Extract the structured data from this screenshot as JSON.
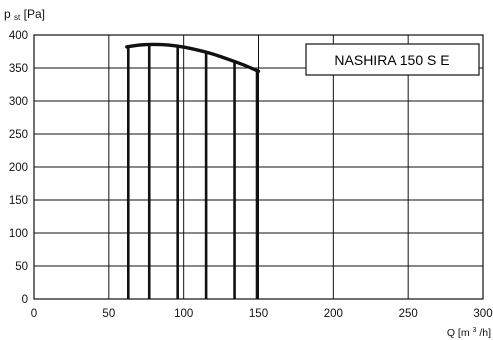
{
  "chart_data": {
    "type": "line",
    "title": "",
    "legend_box_text": "NASHIRA 150 S E",
    "legend_placement": "top-right",
    "ylabel": {
      "main": "p",
      "sub": "st",
      "unit": " [Pa]"
    },
    "xlabel": {
      "prefix": "Q [m",
      "superscript": "3",
      "suffix": "/h]"
    },
    "xlim": [
      0,
      300
    ],
    "ylim": [
      0,
      400
    ],
    "x_ticks": [
      "0",
      "50",
      "100",
      "150",
      "200",
      "250",
      "300"
    ],
    "y_ticks": [
      "0",
      "50",
      "100",
      "150",
      "200",
      "250",
      "300",
      "350",
      "400"
    ],
    "grid": true,
    "series": [
      {
        "values": [
          [
            62,
            382
          ],
          [
            70,
            385
          ],
          [
            80,
            386
          ],
          [
            90,
            385
          ],
          [
            100,
            382
          ],
          [
            110,
            377
          ],
          [
            120,
            371
          ],
          [
            130,
            363
          ],
          [
            140,
            355
          ],
          [
            150,
            345
          ]
        ]
      }
    ],
    "vertical_lines_x": [
      63,
      77,
      96,
      115,
      134,
      149
    ],
    "colors": {
      "curve": "#111111",
      "grid": "#111111",
      "box": "#111111",
      "background": "#ffffff"
    }
  }
}
